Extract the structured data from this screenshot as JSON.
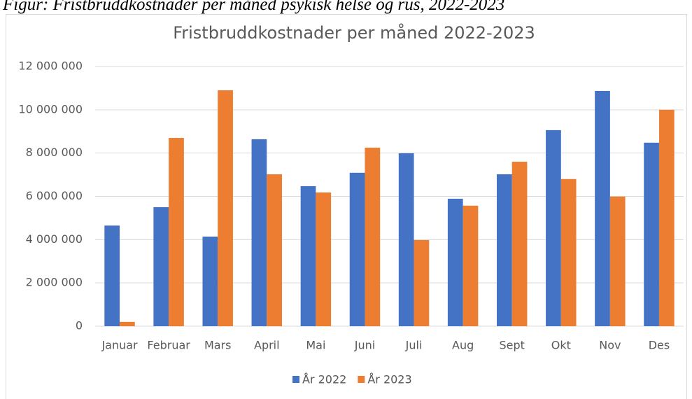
{
  "caption": "Figur: Fristbruddkostnader per måned psykisk helse og rus, 2022-2023",
  "chart_data": {
    "type": "bar",
    "title": "Fristbruddkostnader per måned 2022-2023",
    "categories": [
      "Januar",
      "Februar",
      "Mars",
      "April",
      "Mai",
      "Juni",
      "Juli",
      "Aug",
      "Sept",
      "Okt",
      "Nov",
      "Des"
    ],
    "series": [
      {
        "name": "År 2022",
        "color": "#4472c4",
        "values": [
          4650000,
          5500000,
          4140000,
          8640000,
          6470000,
          7090000,
          7990000,
          5890000,
          7020000,
          9060000,
          10870000,
          8480000
        ]
      },
      {
        "name": "År 2023",
        "color": "#ed7d31",
        "values": [
          200000,
          8700000,
          10900000,
          7020000,
          6180000,
          8250000,
          3980000,
          5570000,
          7600000,
          6800000,
          5990000,
          10000000
        ]
      }
    ],
    "ylim": [
      0,
      12000000
    ],
    "yticks": [
      {
        "value": 0,
        "label": "0"
      },
      {
        "value": 2000000,
        "label": "2 000 000"
      },
      {
        "value": 4000000,
        "label": "4 000 000"
      },
      {
        "value": 6000000,
        "label": "6 000 000"
      },
      {
        "value": 8000000,
        "label": "8 000 000"
      },
      {
        "value": 10000000,
        "label": "10 000 000"
      },
      {
        "value": 12000000,
        "label": "12 000 000"
      }
    ],
    "grid": true,
    "legend": "bottom"
  }
}
